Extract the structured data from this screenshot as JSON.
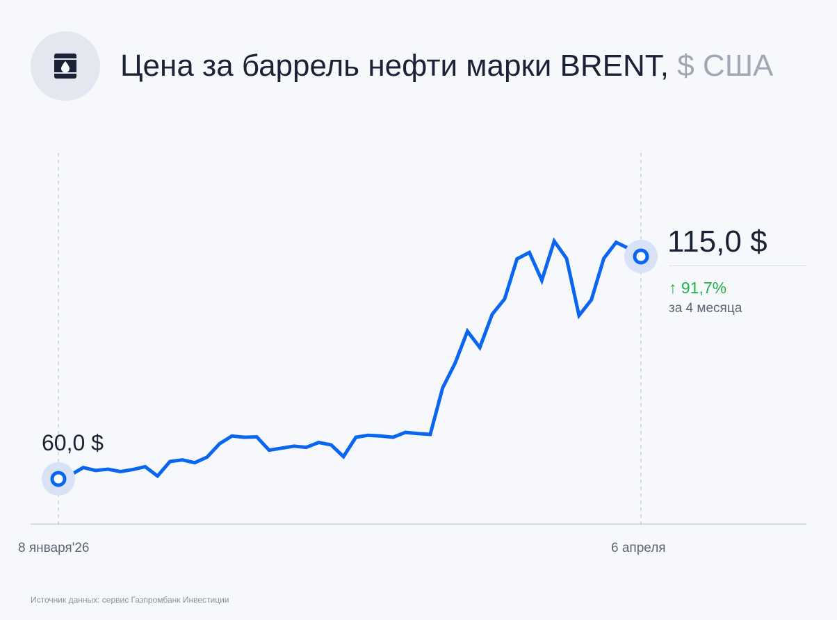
{
  "header": {
    "title": "Цена за баррель нефти марки BRENT,",
    "unit": "$ США",
    "icon": "oil-barrel-icon"
  },
  "chart_data": {
    "type": "line",
    "title": "Цена за баррель нефти марки BRENT, $ США",
    "x_start_label": "8 января'26",
    "x_end_label": "6 апреля",
    "ylim": [
      50,
      130
    ],
    "series": [
      {
        "values": [
          60.0,
          61.0,
          62.8,
          62.1,
          62.4,
          61.8,
          62.3,
          63.0,
          60.7,
          64.3,
          64.7,
          64.0,
          65.4,
          68.7,
          70.6,
          70.3,
          70.4,
          67.1,
          67.6,
          68.1,
          67.8,
          69.0,
          68.4,
          65.5,
          70.3,
          70.8,
          70.6,
          70.3,
          71.5,
          71.2,
          71.0,
          82.5,
          88.6,
          96.5,
          92.5,
          100.7,
          104.5,
          114.4,
          116.0,
          109.1,
          118.8,
          114.5,
          100.4,
          104.3,
          114.5,
          118.5,
          117.0,
          115.0
        ],
        "color": "#0a66f0"
      }
    ],
    "start_value_label": "60,0 $",
    "end_value_label": "115,0 $",
    "change_label": "↑ 91,7%",
    "period_label": "за 4 месяца"
  },
  "source": "Источник данных: сервис Газпромбанк Инвестиции",
  "colors": {
    "line": "#0a66f0",
    "positive": "#21b24a",
    "background": "#f7f8fc",
    "text": "#1b2236",
    "muted": "#a3a7b3"
  }
}
